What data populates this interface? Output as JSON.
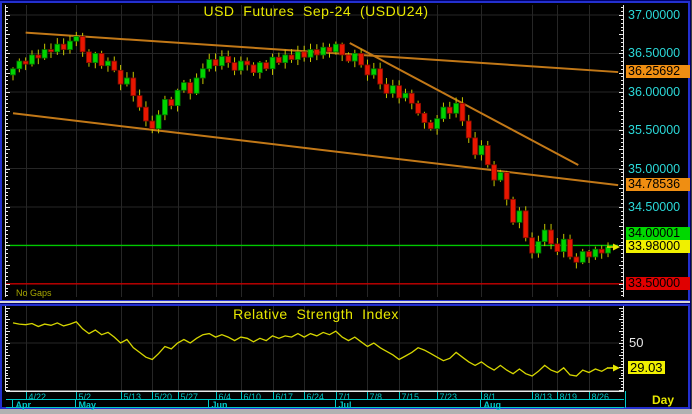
{
  "main_chart": {
    "title": "USD  Futures  Sep-24  (USDU24)",
    "no_gaps_label": "No Gaps",
    "price_ticks": [
      {
        "label": "37.00000",
        "value": 37.0
      },
      {
        "label": "36.50000",
        "value": 36.5
      },
      {
        "label": "36.00000",
        "value": 36.0
      },
      {
        "label": "35.50000",
        "value": 35.5
      },
      {
        "label": "35.00000",
        "value": 35.0
      },
      {
        "label": "34.50000",
        "value": 34.5
      }
    ],
    "highlight_badges": [
      {
        "label": "36.25692",
        "value": 36.25692,
        "bg": "#ef8e12",
        "name": "upper-trendline-price-badge"
      },
      {
        "label": "34.78536",
        "value": 34.78536,
        "bg": "#ef8e12",
        "name": "lower-trendline-price-badge"
      },
      {
        "label": "34.00001",
        "value": 34.00001,
        "bg": "#00d800",
        "name": "support-line-price-badge"
      },
      {
        "label": "33.98000",
        "value": 33.98,
        "bg": "#f0f000",
        "name": "last-price-badge"
      },
      {
        "label": "33.50000",
        "value": 33.5,
        "bg": "#e00000",
        "name": "stop-line-price-badge"
      }
    ],
    "trend_lines": [
      {
        "from_day": 2.0,
        "from_price": 36.77,
        "to_day": 95.6,
        "to_price": 36.257
      },
      {
        "from_day": 0.0,
        "from_price": 35.72,
        "to_day": 95.6,
        "to_price": 34.785
      },
      {
        "from_day": 53.2,
        "from_price": 36.635,
        "to_day": 89.3,
        "to_price": 35.047
      }
    ],
    "support_line_price": 34.00001,
    "stop_line_price": 33.5,
    "last_price": 33.98
  },
  "rsi_panel": {
    "title": "Relative  Strength  Index",
    "level_label": "50",
    "level_value": 50,
    "value_label": "29.03",
    "value": 29.03
  },
  "date_axis": {
    "ticks": [
      {
        "label": "4/22",
        "day": 2
      },
      {
        "label": "5/2",
        "day": 10
      },
      {
        "label": "5/13",
        "day": 17
      },
      {
        "label": "5/20",
        "day": 22
      },
      {
        "label": "5/27",
        "day": 26
      },
      {
        "label": "6/4",
        "day": 32
      },
      {
        "label": "6/10",
        "day": 36
      },
      {
        "label": "6/17",
        "day": 41
      },
      {
        "label": "6/24",
        "day": 46
      },
      {
        "label": "7/1",
        "day": 51
      },
      {
        "label": "7/8",
        "day": 56
      },
      {
        "label": "7/15",
        "day": 61
      },
      {
        "label": "7/23",
        "day": 67
      },
      {
        "label": "8/1",
        "day": 74
      },
      {
        "label": "8/13",
        "day": 82
      },
      {
        "label": "8/19",
        "day": 86
      },
      {
        "label": "8/26",
        "day": 91
      }
    ],
    "months": [
      {
        "label": "Apr",
        "day": 0
      },
      {
        "label": "May",
        "day": 10
      },
      {
        "label": "Jun",
        "day": 31
      },
      {
        "label": "Jul",
        "day": 51
      },
      {
        "label": "Aug",
        "day": 74
      }
    ],
    "timeframe_label": "Day"
  },
  "chart_data": {
    "type": "candlestick",
    "title": "USD Futures Sep-24 (USDU24)",
    "interval": "Day",
    "ylim": [
      33.3,
      37.1
    ],
    "first_open": 36.22,
    "closes": [
      36.3,
      36.4,
      36.36,
      36.48,
      36.44,
      36.55,
      36.52,
      36.62,
      36.55,
      36.66,
      36.72,
      36.52,
      36.38,
      36.5,
      36.34,
      36.4,
      36.28,
      36.1,
      36.18,
      35.95,
      35.8,
      35.62,
      35.52,
      35.7,
      35.9,
      35.82,
      36.02,
      36.12,
      35.98,
      36.18,
      36.3,
      36.42,
      36.34,
      36.46,
      36.38,
      36.28,
      36.4,
      36.35,
      36.25,
      36.38,
      36.3,
      36.45,
      36.38,
      36.48,
      36.42,
      36.52,
      36.45,
      36.55,
      36.48,
      36.58,
      36.52,
      36.62,
      36.48,
      36.4,
      36.5,
      36.35,
      36.22,
      36.3,
      36.1,
      35.98,
      36.08,
      35.92,
      35.98,
      35.85,
      35.72,
      35.6,
      35.52,
      35.65,
      35.8,
      35.72,
      35.85,
      35.62,
      35.4,
      35.18,
      35.3,
      35.05,
      34.85,
      34.95,
      34.6,
      34.3,
      34.45,
      34.1,
      33.9,
      34.05,
      34.2,
      34.02,
      33.92,
      34.08,
      33.85,
      33.78,
      33.92,
      33.85,
      33.95,
      33.9,
      33.98
    ],
    "rsi": [
      67,
      66,
      65.5,
      66.5,
      64,
      66,
      65,
      67,
      64.5,
      66,
      68,
      62,
      58,
      61,
      57,
      59,
      55,
      50,
      53,
      46,
      42,
      38,
      36,
      41,
      47,
      45,
      50,
      53,
      50,
      54,
      57,
      58,
      55,
      57,
      55,
      52,
      55,
      54,
      51,
      54,
      52,
      56,
      54,
      56,
      55,
      58,
      55,
      58,
      56,
      59,
      57,
      60,
      55,
      52,
      55,
      51,
      47,
      50,
      46,
      43,
      40,
      36,
      39,
      42,
      46,
      44,
      41,
      38,
      35,
      37,
      42,
      38,
      34,
      31,
      34,
      30,
      27,
      31,
      27,
      24,
      28,
      24,
      22,
      26,
      31,
      27,
      25,
      29,
      23,
      22,
      27,
      25,
      28,
      26,
      29.03
    ]
  },
  "colors": {
    "up": "#00d400",
    "up_edge": "#007400",
    "down": "#e81600",
    "down_edge": "#7c0c00",
    "wick": "#c6c600",
    "trend": "#c27817",
    "grid": "#262626",
    "axis": "#e8e8e8",
    "cyan_text": "#2bd9d9",
    "title_yellow": "#e8e800",
    "support_green": "#00c800",
    "stop_red": "#c80000",
    "rsi_line": "#d6d600",
    "date_cyan": "#00c9c9",
    "frame_blue": "#2330cf",
    "arrow_yellow": "#e8e800"
  }
}
